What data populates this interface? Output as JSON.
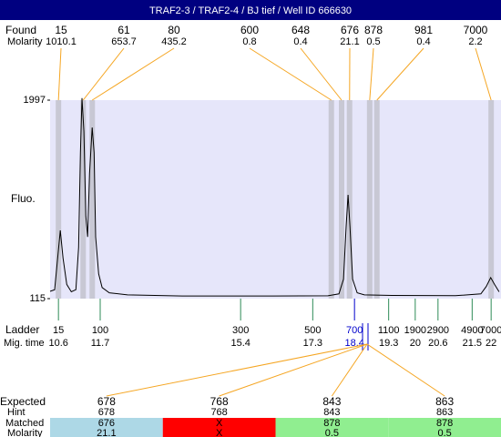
{
  "title": "TRAF2-3 / TRAF2-4 / BJ tief / Well ID 666630",
  "found": {
    "label": "Found",
    "sub_label": "Molarity",
    "peaks": [
      {
        "size": 15,
        "molarity": 1010.1,
        "time": 10.6
      },
      {
        "size": 61,
        "molarity": 653.7,
        "time": 11.25
      },
      {
        "size": 80,
        "molarity": 435.2,
        "time": 11.49
      },
      {
        "size": 600,
        "molarity": 0.8,
        "time": 17.79
      },
      {
        "size": 648,
        "molarity": 0.4,
        "time": 18.06
      },
      {
        "size": 676,
        "molarity": 21.1,
        "time": 18.27
      },
      {
        "size": 878,
        "molarity": 0.5,
        "time": 18.8
      },
      {
        "size": 981,
        "molarity": 0.4,
        "time": 18.99
      },
      {
        "size": 7000,
        "molarity": 2.2,
        "time": 22.0
      }
    ]
  },
  "plot": {
    "ylabel": "Fluo.",
    "ylim": [
      115,
      1997
    ],
    "yticks": [
      115,
      1997
    ],
    "xlim": [
      10.38,
      22.26
    ],
    "background": "#e6e6fa",
    "band_color": "#c8c8d4",
    "line_color": "#000000",
    "trace": {
      "x": [
        10.38,
        10.5,
        10.58,
        10.65,
        10.72,
        10.82,
        10.94,
        11.06,
        11.13,
        11.18,
        11.22,
        11.27,
        11.32,
        11.37,
        11.42,
        11.49,
        11.54,
        11.58,
        11.66,
        11.75,
        11.94,
        12.42,
        13.86,
        16.26,
        17.7,
        17.99,
        18.11,
        18.18,
        18.23,
        18.28,
        18.35,
        18.47,
        18.66,
        19.38,
        21.06,
        21.73,
        21.87,
        21.99,
        22.09,
        22.21
      ],
      "y": [
        184,
        200,
        500,
        762,
        500,
        250,
        180,
        200,
        600,
        1500,
        2016,
        1700,
        900,
        700,
        1300,
        1738,
        1500,
        700,
        350,
        220,
        170,
        150,
        140,
        140,
        142,
        160,
        300,
        800,
        1099,
        800,
        300,
        170,
        150,
        145,
        143,
        160,
        230,
        314,
        250,
        180
      ]
    }
  },
  "ladder": {
    "label": "Ladder",
    "sub_label": "Mig. time",
    "selected": 4,
    "sizes": [
      15,
      100,
      300,
      500,
      700,
      1100,
      1900,
      2900,
      4900,
      7000
    ],
    "times": [
      10.6,
      11.7,
      15.4,
      17.3,
      18.4,
      19.3,
      20,
      20.6,
      21.5,
      22
    ]
  },
  "expected": {
    "labels": [
      "Expected",
      "Hint",
      "Matched",
      "Molarity"
    ],
    "columns": [
      {
        "expected": 678,
        "hint": 678,
        "matched": 676,
        "molarity": 21.1,
        "color": "#add8e6"
      },
      {
        "expected": 768,
        "hint": 768,
        "matched": "X",
        "molarity": "X",
        "color": "#ff0000"
      },
      {
        "expected": 843,
        "hint": 843,
        "matched": 878,
        "molarity": 0.5,
        "color": "#90ee90"
      },
      {
        "expected": 863,
        "hint": 863,
        "matched": 878,
        "molarity": 0.5,
        "color": "#90ee90"
      }
    ]
  }
}
